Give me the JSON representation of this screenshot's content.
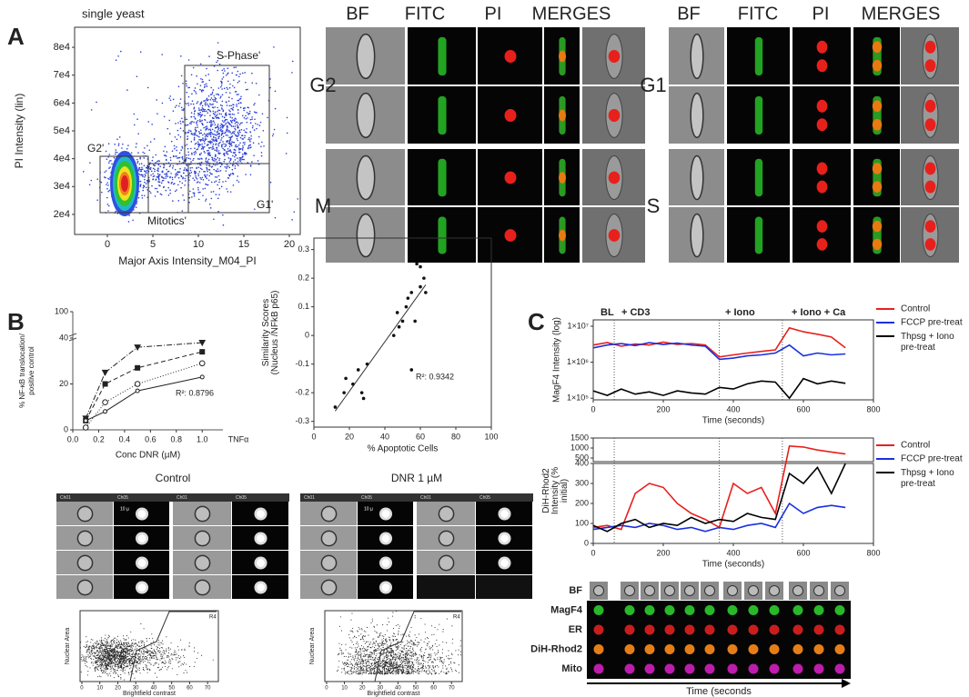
{
  "panels": {
    "A": {
      "label": "A",
      "headers_left": [
        "BF",
        "FITC",
        "PI",
        "MERGES"
      ],
      "headers_right": [
        "BF",
        "FITC",
        "PI",
        "MERGES"
      ],
      "rows_left": [
        "G2",
        "M"
      ],
      "rows_right": [
        "G1",
        "S"
      ]
    },
    "B": {
      "label": "B",
      "image_titles": [
        "Control",
        "DNR 1 µM"
      ],
      "channels": [
        "Ch01",
        "Ch05"
      ],
      "scale_label": "10 µ"
    },
    "C": {
      "label": "C",
      "strip_rows": [
        "BF",
        "MagF4",
        "ER",
        "DiH-Rhod2",
        "Mito"
      ],
      "strip_axis": "Time (seconds"
    }
  },
  "chart_data": [
    {
      "type": "scatter",
      "title": "single yeast",
      "x_label": "Major Axis Intensity_M04_PI",
      "y_label": "PI Intensity (lin)",
      "xlim": [
        -3.6,
        21.2
      ],
      "ylim": [
        12800,
        87200
      ],
      "xticks": [
        0,
        5,
        10,
        15,
        20
      ],
      "yticks": [
        {
          "value": 20000,
          "label": "2e4"
        },
        {
          "value": 30000,
          "label": "3e4"
        },
        {
          "value": 40000,
          "label": "4e4"
        },
        {
          "value": 50000,
          "label": "5e4"
        },
        {
          "value": 60000,
          "label": "6e4"
        },
        {
          "value": 70000,
          "label": "7e4"
        },
        {
          "value": 80000,
          "label": "8e4"
        }
      ],
      "gates": [
        "G2'",
        "Mitotics'",
        "G1'",
        "S-Phase'"
      ]
    },
    {
      "type": "line",
      "x_label": "Conc DNR (µM)",
      "y_label": "% NF-κB translocation/ positive control",
      "extra_label": "TNFα",
      "annotation": "R²: 0.8796",
      "xlim": [
        0,
        1.16
      ],
      "ylim": [
        0,
        100
      ],
      "ybreak": 40,
      "xticks": [
        {
          "value": 0,
          "label": "0.0"
        },
        0.2,
        0.4,
        0.6,
        0.8,
        {
          "value": 1,
          "label": "1.0"
        }
      ],
      "yticks": [
        0,
        20,
        40,
        100
      ],
      "x": [
        0.1,
        0.25,
        0.5,
        1.0
      ],
      "series": [
        {
          "color": "#222",
          "marker": "triangle",
          "dash": "6 2 1 2",
          "values": [
            5,
            25,
            36,
            38
          ]
        },
        {
          "color": "#222",
          "marker": "square",
          "dash": "5 3",
          "values": [
            4,
            20,
            27,
            34
          ]
        },
        {
          "color": "#222",
          "marker": "open-circle",
          "dash": "1 2",
          "values": [
            1,
            12,
            20,
            29
          ]
        },
        {
          "color": "#222",
          "marker": "small-circle",
          "dash": "none",
          "values": [
            4,
            8,
            17,
            23
          ]
        }
      ]
    },
    {
      "type": "scatter",
      "x_label": "% Apoptotic Cells",
      "y_label": "Similarity Scores (Nucleus /NFkB p65)",
      "annotation": "R²: 0.9342",
      "xlim": [
        0,
        100
      ],
      "ylim": [
        -0.32,
        0.34
      ],
      "xticks": [
        0,
        20,
        40,
        60,
        80,
        100
      ],
      "yticks": [
        -0.3,
        -0.2,
        -0.1,
        0,
        0.1,
        0.2,
        0.3
      ],
      "color": "#111",
      "x": [
        12,
        17,
        18,
        22,
        25,
        27,
        28,
        30,
        45,
        47,
        48,
        50,
        52,
        53,
        55,
        55,
        57,
        58,
        60,
        60,
        62,
        63
      ],
      "values": [
        -0.25,
        -0.2,
        -0.15,
        -0.17,
        -0.12,
        -0.2,
        -0.22,
        -0.1,
        0,
        0.08,
        0.03,
        0.05,
        0.1,
        0.13,
        0.15,
        -0.12,
        0.05,
        0.25,
        0.17,
        0.24,
        0.2,
        0.15
      ]
    },
    {
      "type": "line",
      "x_label": "Time (seconds)",
      "y_label": "MagF4 Intensity (log)",
      "log_y": true,
      "xlim": [
        0,
        800
      ],
      "ylim": [
        90000,
        15000000
      ],
      "xticks": [
        0,
        200,
        400,
        600,
        800
      ],
      "yticks": [
        {
          "value": 100000,
          "label": "1×10⁵"
        },
        {
          "value": 1000000,
          "label": "1×10⁶"
        },
        {
          "value": 10000000,
          "label": "1×10⁷"
        }
      ],
      "events": [
        60,
        360,
        540
      ],
      "annotations": [
        "BL",
        "+ CD3",
        "+ Iono",
        "+ Iono + Ca"
      ],
      "x": [
        0,
        40,
        80,
        120,
        160,
        200,
        240,
        280,
        320,
        360,
        400,
        440,
        480,
        520,
        560,
        600,
        640,
        680,
        720
      ],
      "series": [
        {
          "name": "Control",
          "color": "#e8201c",
          "values": [
            3000000,
            3500000,
            2800000,
            3200000,
            3000000,
            3600000,
            3100000,
            3300000,
            3000000,
            1400000,
            1600000,
            1800000,
            2000000,
            2200000,
            9000000,
            7000000,
            6000000,
            5000000,
            2500000
          ]
        },
        {
          "name": "FCCP pre-treat",
          "color": "#1a2fe0",
          "values": [
            2500000,
            3000000,
            3300000,
            2900000,
            3500000,
            3100000,
            3400000,
            3000000,
            2800000,
            1200000,
            1300000,
            1500000,
            1600000,
            1800000,
            3000000,
            1500000,
            1800000,
            1600000,
            1700000
          ]
        },
        {
          "name": "Thpsg + Iono pre-treat",
          "color": "#000000",
          "values": [
            160000,
            120000,
            180000,
            130000,
            150000,
            120000,
            160000,
            140000,
            130000,
            200000,
            180000,
            250000,
            300000,
            280000,
            100000,
            350000,
            250000,
            300000,
            260000
          ]
        }
      ]
    },
    {
      "type": "line",
      "x_label": "Time (seconds)",
      "y_label": "DiH-Rhod2 Intensity (% initial)",
      "xlim": [
        0,
        800
      ],
      "ylim": [
        0,
        1500
      ],
      "ybreak": [
        400,
        500
      ],
      "xticks": [
        0,
        200,
        400,
        600,
        800
      ],
      "yticks": [
        0,
        100,
        200,
        300,
        400,
        500,
        1000,
        1500
      ],
      "events": [
        60,
        360,
        540
      ],
      "x": [
        0,
        40,
        80,
        120,
        160,
        200,
        240,
        280,
        320,
        360,
        400,
        440,
        480,
        520,
        560,
        600,
        640,
        680,
        720
      ],
      "series": [
        {
          "name": "Control",
          "color": "#e8201c",
          "values": [
            80,
            90,
            70,
            250,
            300,
            280,
            200,
            150,
            120,
            80,
            300,
            250,
            280,
            150,
            1100,
            1050,
            900,
            800,
            700
          ]
        },
        {
          "name": "FCCP pre-treat",
          "color": "#1a2fe0",
          "values": [
            70,
            80,
            90,
            80,
            100,
            90,
            70,
            80,
            60,
            80,
            70,
            90,
            100,
            80,
            200,
            150,
            180,
            190,
            180
          ]
        },
        {
          "name": "Thpsg + Iono pre-treat",
          "color": "#000000",
          "values": [
            90,
            60,
            100,
            120,
            80,
            100,
            90,
            130,
            100,
            120,
            110,
            150,
            130,
            120,
            350,
            300,
            380,
            250,
            400
          ]
        }
      ]
    },
    {
      "type": "scatter",
      "x_label": "Brightfield contrast",
      "y_label": "Nuclear Area",
      "xlim": [
        -1,
        76
      ],
      "xticks": [
        0,
        10,
        20,
        30,
        40,
        50,
        60,
        70
      ],
      "gate": "R4"
    },
    {
      "type": "scatter",
      "x_label": "Brightfield contrast",
      "y_label": "Nuclear Area",
      "xlim": [
        -1,
        76
      ],
      "xticks": [
        0,
        10,
        20,
        30,
        40,
        50,
        60,
        70
      ],
      "gate": "R4"
    }
  ]
}
